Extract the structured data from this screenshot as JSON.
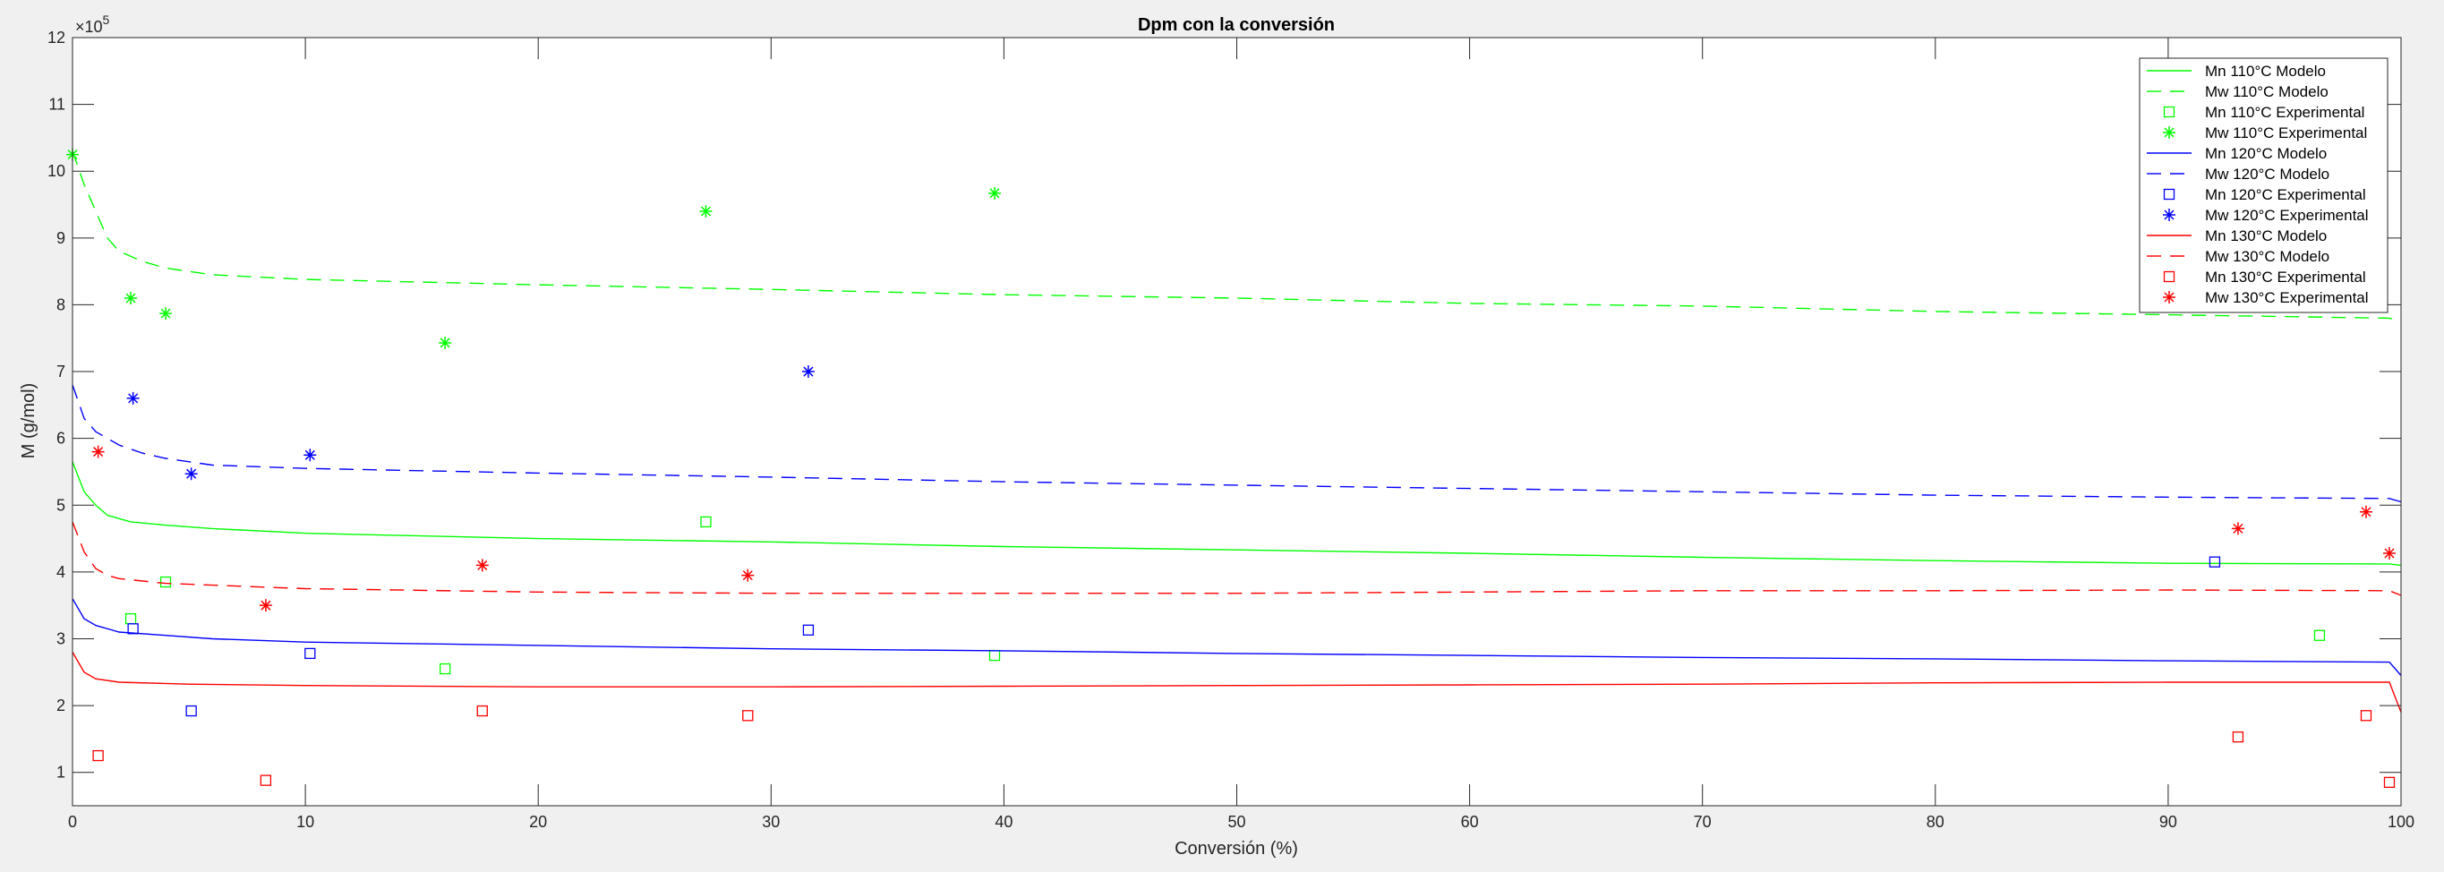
{
  "chart_data": {
    "type": "line",
    "title": "Dpm con la conversión",
    "xlabel": "Conversión (%)",
    "ylabel": "M (g/mol)",
    "exponent_base": "×10",
    "exponent_power": "5",
    "xlim": [
      0,
      100
    ],
    "ylim": [
      0.5,
      12
    ],
    "xticks": [
      0,
      10,
      20,
      30,
      40,
      50,
      60,
      70,
      80,
      90,
      100
    ],
    "yticks": [
      1,
      2,
      3,
      4,
      5,
      6,
      7,
      8,
      9,
      10,
      11,
      12
    ],
    "grid": false,
    "legend_position": "top-right",
    "colors": {
      "green": "#00ff00",
      "blue": "#0000ff",
      "red": "#ff0000"
    },
    "series": [
      {
        "name": "Mn 110°C Modelo",
        "color": "#00ff00",
        "style": "solid",
        "x": [
          0,
          0.5,
          1,
          1.5,
          2.5,
          4,
          6,
          10,
          20,
          30,
          40,
          50,
          60,
          70,
          80,
          90,
          99.5,
          100
        ],
        "y": [
          5.65,
          5.2,
          5.0,
          4.85,
          4.75,
          4.7,
          4.65,
          4.58,
          4.5,
          4.45,
          4.38,
          4.33,
          4.28,
          4.22,
          4.17,
          4.13,
          4.12,
          4.1
        ]
      },
      {
        "name": "Mw 110°C Modelo",
        "color": "#00ff00",
        "style": "dashed",
        "x": [
          0,
          0.5,
          1,
          1.5,
          2,
          3,
          4,
          6,
          10,
          20,
          30,
          40,
          50,
          60,
          70,
          80,
          90,
          99.5,
          100
        ],
        "y": [
          10.3,
          9.8,
          9.4,
          9.0,
          8.8,
          8.65,
          8.55,
          8.45,
          8.38,
          8.3,
          8.23,
          8.15,
          8.1,
          8.02,
          7.98,
          7.9,
          7.85,
          7.8,
          7.75
        ]
      },
      {
        "name": "Mn 110°C Experimental",
        "color": "#00ff00",
        "marker": "square",
        "x": [
          2.5,
          4,
          16,
          27.2,
          39.6,
          96.5
        ],
        "y": [
          3.3,
          3.85,
          2.55,
          4.75,
          2.75,
          3.05
        ]
      },
      {
        "name": "Mw 110°C Experimental",
        "color": "#00ff00",
        "marker": "star",
        "x": [
          0,
          2.5,
          4,
          16,
          27.2,
          39.6
        ],
        "y": [
          10.25,
          8.1,
          7.87,
          7.43,
          9.4,
          9.67
        ]
      },
      {
        "name": "Mn 120°C Modelo",
        "color": "#0000ff",
        "style": "solid",
        "x": [
          0,
          0.5,
          1,
          2,
          4,
          6,
          10,
          20,
          30,
          40,
          50,
          60,
          70,
          80,
          90,
          99.5,
          100
        ],
        "y": [
          3.6,
          3.3,
          3.2,
          3.1,
          3.05,
          3.0,
          2.95,
          2.9,
          2.85,
          2.82,
          2.78,
          2.75,
          2.72,
          2.7,
          2.67,
          2.65,
          2.45
        ]
      },
      {
        "name": "Mw 120°C Modelo",
        "color": "#0000ff",
        "style": "dashed",
        "x": [
          0,
          0.5,
          1,
          1.5,
          2,
          3,
          4,
          6,
          10,
          20,
          30,
          40,
          50,
          60,
          70,
          80,
          90,
          99.5,
          100
        ],
        "y": [
          6.8,
          6.3,
          6.1,
          6.0,
          5.9,
          5.78,
          5.7,
          5.6,
          5.55,
          5.48,
          5.42,
          5.35,
          5.3,
          5.25,
          5.2,
          5.15,
          5.12,
          5.1,
          5.05
        ]
      },
      {
        "name": "Mn 120°C Experimental",
        "color": "#0000ff",
        "marker": "square",
        "x": [
          2.6,
          5.1,
          10.2,
          31.6,
          92
        ],
        "y": [
          3.15,
          1.92,
          2.78,
          3.13,
          4.15
        ]
      },
      {
        "name": "Mw 120°C Experimental",
        "color": "#0000ff",
        "marker": "star",
        "x": [
          2.6,
          5.1,
          10.2,
          31.6
        ],
        "y": [
          6.6,
          5.47,
          5.75,
          7.0
        ]
      },
      {
        "name": "Mn 130°C Modelo",
        "color": "#ff0000",
        "style": "solid",
        "x": [
          0,
          0.5,
          1,
          2,
          5,
          10,
          20,
          30,
          40,
          50,
          60,
          70,
          80,
          90,
          99.5,
          100
        ],
        "y": [
          2.8,
          2.5,
          2.4,
          2.35,
          2.32,
          2.3,
          2.28,
          2.28,
          2.29,
          2.3,
          2.31,
          2.32,
          2.34,
          2.35,
          2.35,
          1.9
        ]
      },
      {
        "name": "Mw 130°C Modelo",
        "color": "#ff0000",
        "style": "dashed",
        "x": [
          0,
          0.5,
          1,
          1.5,
          2,
          4,
          10,
          20,
          30,
          40,
          50,
          60,
          70,
          80,
          90,
          99.5,
          100
        ],
        "y": [
          4.75,
          4.3,
          4.05,
          3.95,
          3.9,
          3.83,
          3.75,
          3.7,
          3.68,
          3.68,
          3.68,
          3.7,
          3.72,
          3.72,
          3.73,
          3.72,
          3.65
        ]
      },
      {
        "name": "Mn 130°C Experimental",
        "color": "#ff0000",
        "marker": "square",
        "x": [
          1.1,
          8.3,
          17.6,
          29,
          93,
          98.5,
          99.5
        ],
        "y": [
          1.25,
          0.88,
          1.92,
          1.85,
          1.53,
          1.85,
          0.85
        ]
      },
      {
        "name": "Mw 130°C Experimental",
        "color": "#ff0000",
        "marker": "star",
        "x": [
          1.1,
          8.3,
          17.6,
          29,
          93,
          98.5,
          99.5
        ],
        "y": [
          5.8,
          3.5,
          4.1,
          3.95,
          4.65,
          4.9,
          4.28
        ]
      }
    ]
  }
}
